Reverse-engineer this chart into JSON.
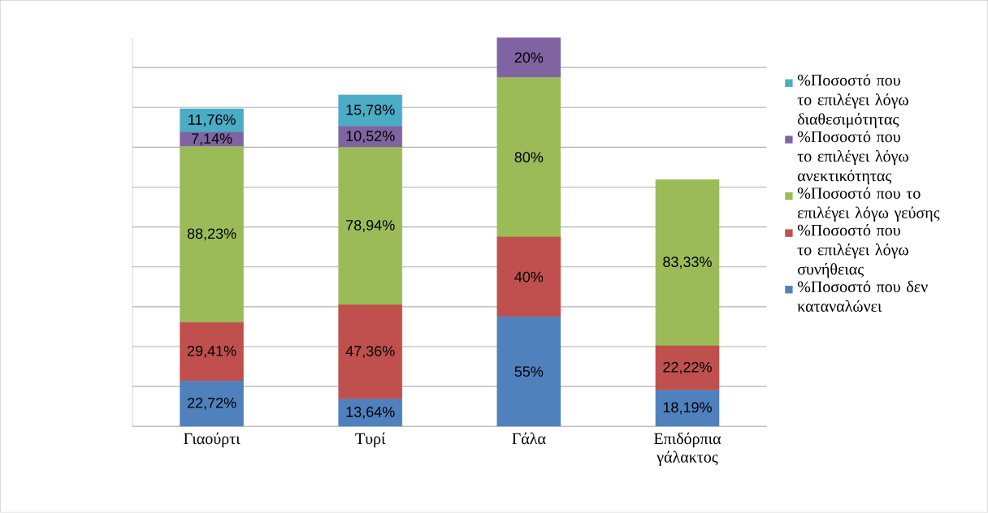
{
  "chart_data": {
    "type": "bar",
    "stacked": true,
    "grid": "y",
    "tick_labels": "x",
    "legend": "right",
    "categories": [
      "Γιαούρτι",
      "Τυρί",
      "Γάλα",
      "Επιδόρπια γάλακτος"
    ],
    "series": [
      {
        "name": "%Ποσοστό που δεν καταναλώνει",
        "color": "#4f81bd",
        "values": [
          22.72,
          13.64,
          55,
          18.19
        ],
        "value_labels": [
          "22,72%",
          "13,64%",
          "55%",
          "18,19%"
        ]
      },
      {
        "name": "%Ποσοστό που το επιλέγει λόγω συνήθειας",
        "color": "#c0504d",
        "values": [
          29.41,
          47.36,
          40,
          22.22
        ],
        "value_labels": [
          "29,41%",
          "47,36%",
          "40%",
          "22,22%"
        ]
      },
      {
        "name": "%Ποσοστό που το επιλέγει λόγω γεύσης",
        "color": "#9bbb59",
        "values": [
          88.23,
          78.94,
          80,
          83.33
        ],
        "value_labels": [
          "88,23%",
          "78,94%",
          "80%",
          "83,33%"
        ]
      },
      {
        "name": "%Ποσοστό που το επιλέγει λόγω ανεκτικότητας",
        "color": "#8064a2",
        "values": [
          7.14,
          10.52,
          20,
          null
        ],
        "value_labels": [
          "7,14%",
          "10,52%",
          "20%",
          null
        ]
      },
      {
        "name": "%Ποσοστό που το επιλέγει λόγω διαθεσιμότητας",
        "color": "#4bacc6",
        "values": [
          11.76,
          15.78,
          null,
          null
        ],
        "value_labels": [
          "11,76%",
          "15,78%",
          null,
          null
        ]
      }
    ]
  }
}
